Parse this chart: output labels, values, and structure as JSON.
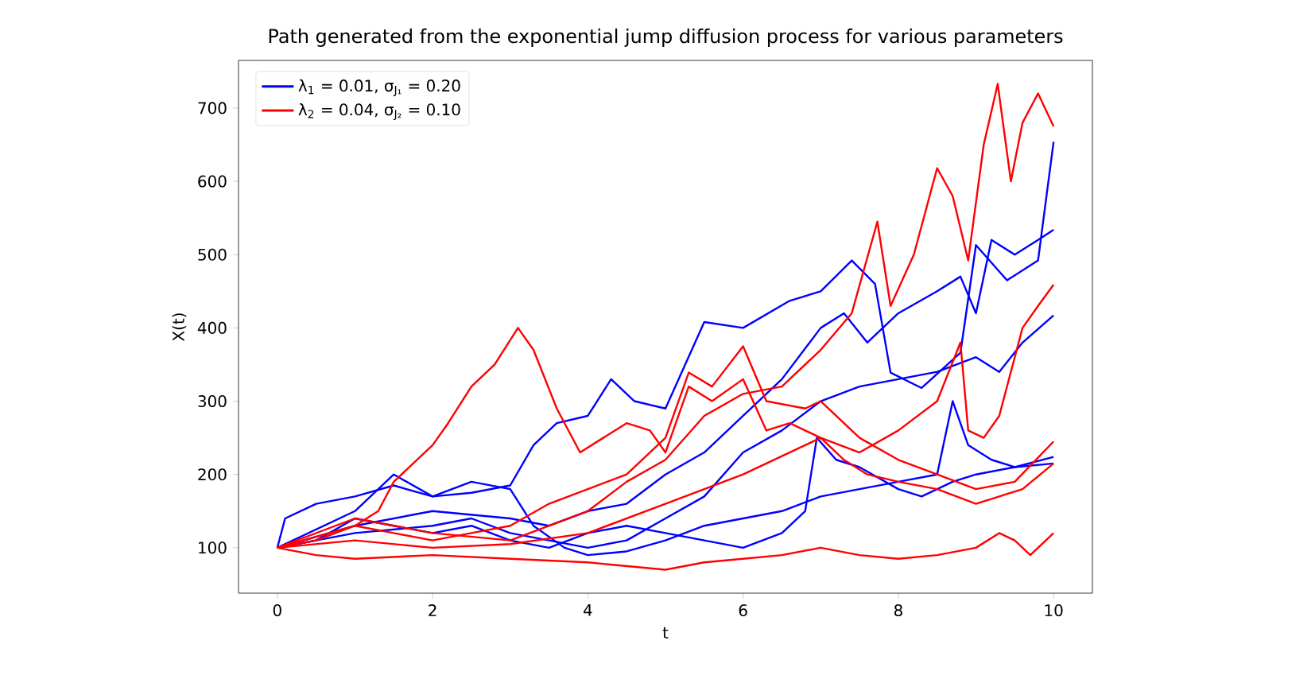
{
  "chart_data": {
    "type": "line",
    "title": "Path generated from the exponential jump diffusion process for various parameters",
    "xlabel": "t",
    "ylabel": "X(t)",
    "xlim": [
      -0.5,
      10.5
    ],
    "ylim": [
      38,
      765
    ],
    "xticks": [
      0,
      2,
      4,
      6,
      8,
      10
    ],
    "yticks": [
      100,
      200,
      300,
      400,
      500,
      600,
      700
    ],
    "legend": "top left",
    "grid": false,
    "marker": "none",
    "line_style": "solid",
    "series": [
      {
        "name": "λ$_{1}$ = 0.01, σ$_{J₁}$ = 0.20",
        "color": "#0000ff",
        "x": [
          0,
          0.1,
          0.5,
          1,
          1.5,
          2,
          2.5,
          3,
          3.3,
          3.6,
          4.0,
          4.3,
          4.6,
          5.0,
          5.5,
          6.0,
          6.6,
          7.0,
          7.4,
          7.7,
          7.9,
          8.3,
          8.8,
          9.0,
          9.4,
          9.8,
          10
        ],
        "values": [
          100,
          140,
          160,
          170,
          185,
          170,
          175,
          185,
          240,
          270,
          280,
          330,
          300,
          290,
          408,
          400,
          437,
          450,
          492,
          460,
          339,
          318,
          366,
          513,
          465,
          492,
          654
        ]
      },
      {
        "color": "#0000ff",
        "x": [
          0,
          1,
          2,
          3,
          3.5,
          4,
          4.5,
          5,
          5.5,
          6,
          6.5,
          7,
          7.3,
          7.6,
          8,
          8.5,
          8.8,
          9.0,
          9.2,
          9.5,
          9.8,
          10
        ],
        "values": [
          100,
          130,
          150,
          140,
          130,
          150,
          160,
          200,
          230,
          280,
          330,
          400,
          420,
          380,
          420,
          450,
          470,
          420,
          520,
          500,
          520,
          534
        ]
      },
      {
        "color": "#0000ff",
        "x": [
          0,
          1,
          2,
          2.5,
          3,
          3.5,
          4,
          4.5,
          5,
          5.5,
          6,
          6.5,
          7,
          7.5,
          8,
          8.5,
          9,
          9.3,
          9.6,
          10
        ],
        "values": [
          100,
          120,
          130,
          140,
          120,
          110,
          100,
          110,
          140,
          170,
          230,
          260,
          300,
          320,
          330,
          340,
          360,
          340,
          380,
          417
        ]
      },
      {
        "color": "#0000ff",
        "x": [
          0,
          1,
          1.5,
          2,
          2.5,
          3,
          3.3,
          3.7,
          4,
          4.5,
          5,
          5.5,
          6,
          6.5,
          7,
          7.5,
          8,
          8.5,
          8.7,
          8.9,
          9.2,
          9.5,
          10
        ],
        "values": [
          100,
          150,
          200,
          170,
          190,
          180,
          130,
          100,
          90,
          95,
          110,
          130,
          140,
          150,
          170,
          180,
          190,
          200,
          300,
          240,
          220,
          210,
          224
        ]
      },
      {
        "color": "#0000ff",
        "x": [
          0,
          0.5,
          1,
          1.5,
          2,
          2.5,
          3,
          3.5,
          4,
          4.5,
          5,
          5.5,
          6,
          6.5,
          6.8,
          6.95,
          7.2,
          7.5,
          8,
          8.3,
          8.7,
          9,
          9.5,
          10
        ],
        "values": [
          100,
          110,
          140,
          130,
          120,
          130,
          110,
          100,
          120,
          130,
          120,
          110,
          100,
          120,
          150,
          250,
          220,
          210,
          180,
          170,
          190,
          200,
          210,
          215
        ]
      },
      {
        "name": "λ$_{2}$ = 0.04, σ$_{J₂}$ = 0.10",
        "color": "#ff0000",
        "x": [
          0,
          1,
          2,
          3,
          4,
          4.5,
          5,
          5.5,
          6,
          6.5,
          7,
          7.4,
          7.73,
          7.9,
          8.2,
          8.5,
          8.7,
          8.9,
          9.1,
          9.28,
          9.45,
          9.6,
          9.8,
          10
        ],
        "values": [
          100,
          140,
          120,
          110,
          150,
          190,
          220,
          280,
          310,
          320,
          370,
          420,
          545,
          430,
          500,
          618,
          580,
          492,
          650,
          733,
          600,
          680,
          720,
          675
        ]
      },
      {
        "color": "#ff0000",
        "x": [
          0,
          0.5,
          1,
          1.3,
          1.5,
          2,
          2.2,
          2.5,
          2.8,
          3.1,
          3.3,
          3.6,
          3.9,
          4.2,
          4.5,
          4.8,
          5.0,
          5.3,
          5.6,
          6.0,
          6.3,
          6.6,
          7.0,
          7.3,
          7.6,
          8.0,
          8.5,
          9.0,
          9.3,
          9.6,
          10
        ],
        "values": [
          100,
          115,
          130,
          150,
          190,
          240,
          270,
          320,
          350,
          400,
          370,
          290,
          230,
          250,
          270,
          260,
          230,
          320,
          300,
          330,
          260,
          270,
          250,
          220,
          200,
          190,
          180,
          160,
          170,
          180,
          215
        ]
      },
      {
        "color": "#ff0000",
        "x": [
          0,
          1,
          2,
          3,
          4,
          5,
          6,
          7,
          7.5,
          8,
          8.5,
          8.8,
          8.9,
          9.1,
          9.3,
          9.6,
          9.8,
          10
        ],
        "values": [
          100,
          110,
          100,
          105,
          120,
          160,
          200,
          250,
          230,
          260,
          300,
          380,
          260,
          250,
          280,
          400,
          430,
          459
        ]
      },
      {
        "color": "#ff0000",
        "x": [
          0,
          0.5,
          1,
          1.5,
          2,
          2.5,
          3,
          3.5,
          4,
          4.5,
          5.0,
          5.3,
          5.6,
          6.0,
          6.3,
          6.8,
          7.0,
          7.5,
          8,
          8.5,
          9.0,
          9.5,
          10
        ],
        "values": [
          100,
          110,
          130,
          120,
          110,
          120,
          130,
          160,
          180,
          200,
          250,
          339,
          320,
          375,
          300,
          290,
          300,
          250,
          220,
          200,
          180,
          190,
          245
        ]
      },
      {
        "color": "#ff0000",
        "x": [
          0,
          0.5,
          1,
          2,
          3,
          4,
          5,
          5.5,
          6,
          6.5,
          7,
          7.5,
          8,
          8.5,
          9,
          9.3,
          9.5,
          9.7,
          10
        ],
        "values": [
          100,
          90,
          85,
          90,
          85,
          80,
          70,
          80,
          85,
          90,
          100,
          90,
          85,
          90,
          100,
          120,
          110,
          90,
          120
        ]
      }
    ]
  }
}
